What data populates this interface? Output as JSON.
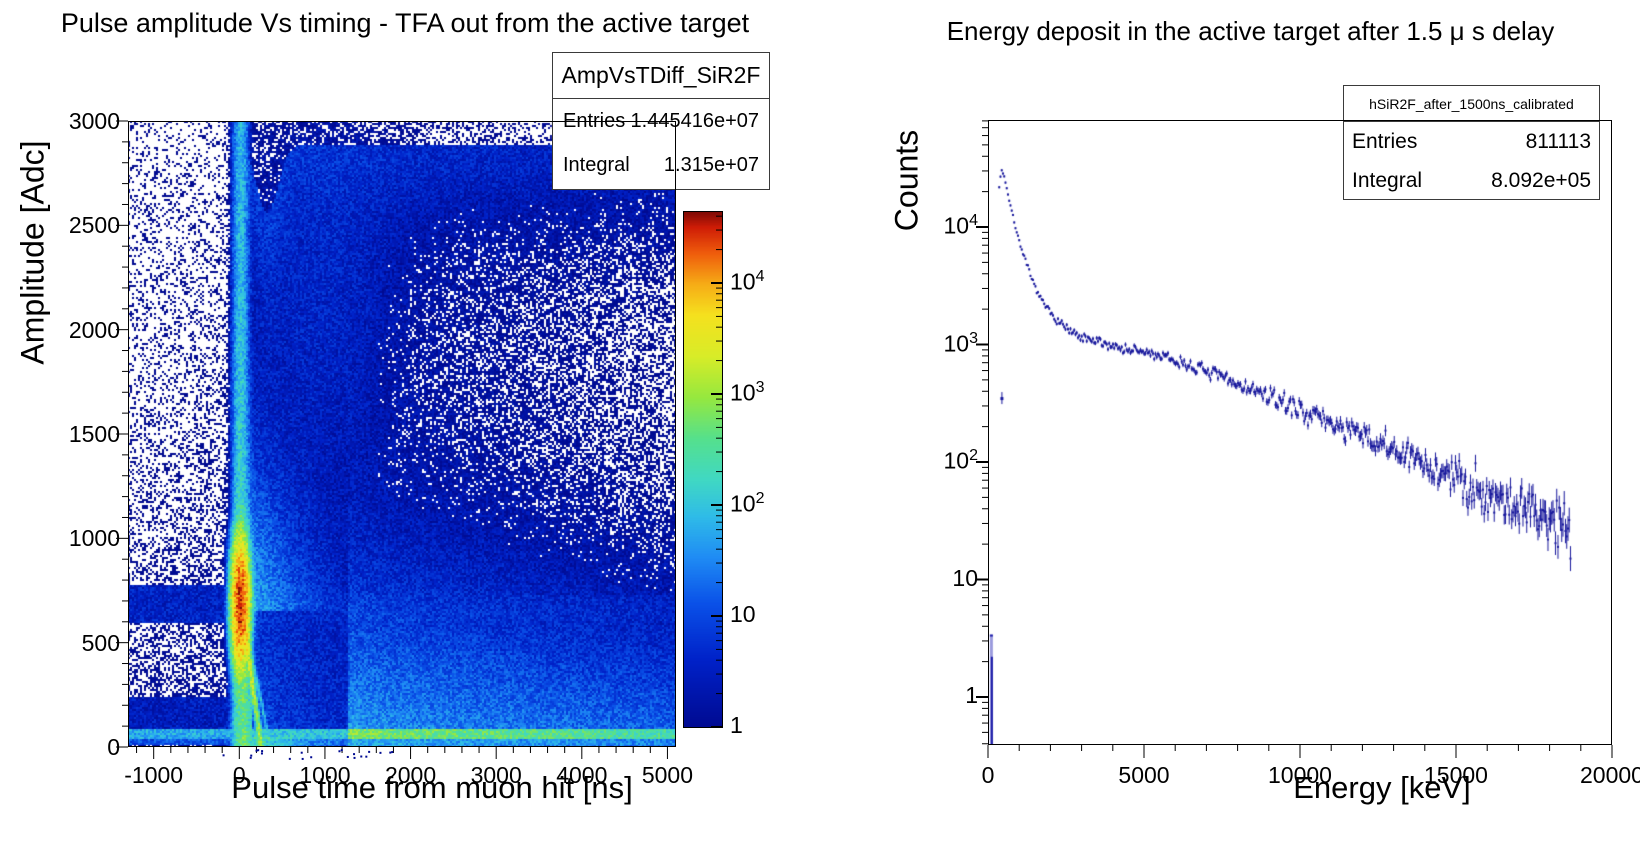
{
  "figure": {
    "background": "#ffffff"
  },
  "palette_stops": [
    [
      0.0,
      "#000a91"
    ],
    [
      0.13,
      "#0021c8"
    ],
    [
      0.24,
      "#0a51e8"
    ],
    [
      0.33,
      "#1f8cf4"
    ],
    [
      0.41,
      "#2fbce8"
    ],
    [
      0.48,
      "#40d8c4"
    ],
    [
      0.56,
      "#55e08d"
    ],
    [
      0.64,
      "#96e83f"
    ],
    [
      0.72,
      "#d8ec28"
    ],
    [
      0.8,
      "#f5e11e"
    ],
    [
      0.86,
      "#f6ac16"
    ],
    [
      0.92,
      "#ef5c0c"
    ],
    [
      0.97,
      "#cf1d06"
    ],
    [
      1.0,
      "#7f0a05"
    ]
  ],
  "marker_color": "#17179c",
  "chart_data": [
    {
      "type": "heatmap",
      "title": "Pulse amplitude Vs timing - TFA out from the active target",
      "xlabel": "Pulse time from muon hit [ns]",
      "ylabel": "Amplitude [Adc]",
      "xlim": [
        -1300,
        5100
      ],
      "ylim": [
        0,
        3000
      ],
      "zscale": "log",
      "zlim": [
        1,
        44000
      ],
      "grid": false,
      "stats": {
        "name": "AmpVsTDiff_SiR2F",
        "entries_label": "Entries",
        "entries": "1.445416e+07",
        "integral_label": "Integral",
        "integral": "1.315e+07"
      },
      "xticks": [
        {
          "v": -1000,
          "label": "-1000"
        },
        {
          "v": 0,
          "label": "0"
        },
        {
          "v": 1000,
          "label": "1000"
        },
        {
          "v": 2000,
          "label": "2000"
        },
        {
          "v": 3000,
          "label": "3000"
        },
        {
          "v": 4000,
          "label": "4000"
        },
        {
          "v": 5000,
          "label": "5000"
        }
      ],
      "xminor_step": 200,
      "yticks": [
        {
          "v": 0,
          "label": "0"
        },
        {
          "v": 500,
          "label": "500"
        },
        {
          "v": 1000,
          "label": "1000"
        },
        {
          "v": 1500,
          "label": "1500"
        },
        {
          "v": 2000,
          "label": "2000"
        },
        {
          "v": 2500,
          "label": "2500"
        },
        {
          "v": 3000,
          "label": "3000"
        }
      ],
      "yminor_step": 100,
      "colorbar": {
        "scale": "log",
        "ticks": [
          {
            "v": 1,
            "base": "1",
            "exp": ""
          },
          {
            "v": 10,
            "base": "10",
            "exp": ""
          },
          {
            "v": 100,
            "base": "10",
            "exp": "2"
          },
          {
            "v": 1000,
            "base": "10",
            "exp": "3"
          },
          {
            "v": 10000,
            "base": "10",
            "exp": "4"
          }
        ]
      },
      "features": {
        "prompt_line": {
          "t0": 15,
          "sigma_t": 45,
          "z_top": 55,
          "z_decay": 320,
          "decay_a": 950
        },
        "hotspot": {
          "t0": 15,
          "a0": 690,
          "sigma_a": 135,
          "z": 26000
        },
        "saturation_cap": {
          "a_top": 2888,
          "notch_t": 330,
          "notch_depth": 325,
          "notch_sigma": 125
        },
        "afterpulse_block": {
          "t_range": [
            140,
            1275
          ],
          "a_range": [
            52,
            648
          ],
          "z": 1.4
        },
        "left_band_high": {
          "t_max": 30,
          "a_range": [
            590,
            775
          ],
          "z": 3.0
        },
        "left_band_low": {
          "t_max": 30,
          "a_range": [
            60,
            235
          ],
          "z": 2.2
        },
        "pedestal_band": {
          "a_range": [
            42,
            90
          ],
          "z_left": 55,
          "z_mid": 90,
          "z_bright": 520
        },
        "streak": {
          "slope": 0.34,
          "width": 15,
          "z": 2600
        }
      }
    },
    {
      "type": "scatter",
      "title": "Energy deposit in the active target after 1.5 μ s delay",
      "xlabel": "Energy [keV]",
      "ylabel": "Counts",
      "xlim": [
        0,
        20000
      ],
      "ylog": true,
      "ylim": [
        0.39,
        81000
      ],
      "grid": false,
      "stats": {
        "name": "hSiR2F_after_1500ns_calibrated",
        "entries_label": "Entries",
        "entries": "811113",
        "integral_label": "Integral",
        "integral": "8.092e+05"
      },
      "xticks": [
        {
          "v": 0,
          "label": "0"
        },
        {
          "v": 5000,
          "label": "5000"
        },
        {
          "v": 10000,
          "label": "10000"
        },
        {
          "v": 15000,
          "label": "15000"
        },
        {
          "v": 20000,
          "label": "20000"
        }
      ],
      "xminor_step": 1000,
      "yticks": [
        {
          "v": 1,
          "base": "1",
          "exp": ""
        },
        {
          "v": 10,
          "base": "10",
          "exp": ""
        },
        {
          "v": 100,
          "base": "10",
          "exp": "2"
        },
        {
          "v": 1000,
          "base": "10",
          "exp": "3"
        },
        {
          "v": 10000,
          "base": "10",
          "exp": "4"
        }
      ],
      "series": [
        {
          "name": "hSiR2F_after_1500ns_calibrated",
          "points": [
            [
              360,
              22000
            ],
            [
              430,
              31000
            ],
            [
              520,
              27000
            ],
            [
              700,
              16000
            ],
            [
              900,
              9500
            ],
            [
              1100,
              6200
            ],
            [
              1400,
              3600
            ],
            [
              1700,
              2400
            ],
            [
              2000,
              1850
            ],
            [
              2300,
              1550
            ],
            [
              2600,
              1300
            ],
            [
              3000,
              1120
            ],
            [
              3500,
              1050
            ],
            [
              4000,
              980
            ],
            [
              4500,
              900
            ],
            [
              5000,
              860
            ],
            [
              5500,
              800
            ],
            [
              6000,
              720
            ],
            [
              6500,
              660
            ],
            [
              7000,
              590
            ],
            [
              8000,
              460
            ],
            [
              9000,
              360
            ],
            [
              10000,
              280
            ],
            [
              11000,
              215
            ],
            [
              12000,
              165
            ],
            [
              13000,
              125
            ],
            [
              14000,
              95
            ],
            [
              15000,
              72
            ],
            [
              16000,
              55
            ],
            [
              17000,
              42
            ],
            [
              18000,
              33
            ],
            [
              18700,
              28
            ]
          ]
        }
      ],
      "extras": {
        "outlier_point": [
          430,
          350
        ],
        "threshold_bar": {
          "e_range": [
            60,
            150
          ],
          "top_count": 3.4,
          "core_top_count": 2.2
        }
      }
    }
  ]
}
